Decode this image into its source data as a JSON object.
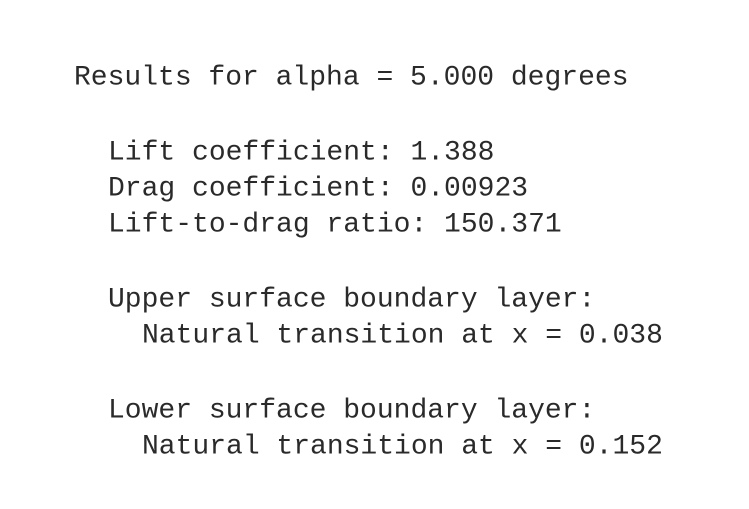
{
  "title": "Results for alpha = 5.000 degrees",
  "coefficients": [
    "Lift coefficient: 1.388",
    "Drag coefficient: 0.00923",
    "Lift-to-drag ratio: 150.371"
  ],
  "upper_surface": {
    "heading": "Upper surface boundary layer:",
    "transition": "Natural transition at x = 0.038"
  },
  "lower_surface": {
    "heading": "Lower surface boundary layer:",
    "transition": "Natural transition at x = 0.152"
  }
}
